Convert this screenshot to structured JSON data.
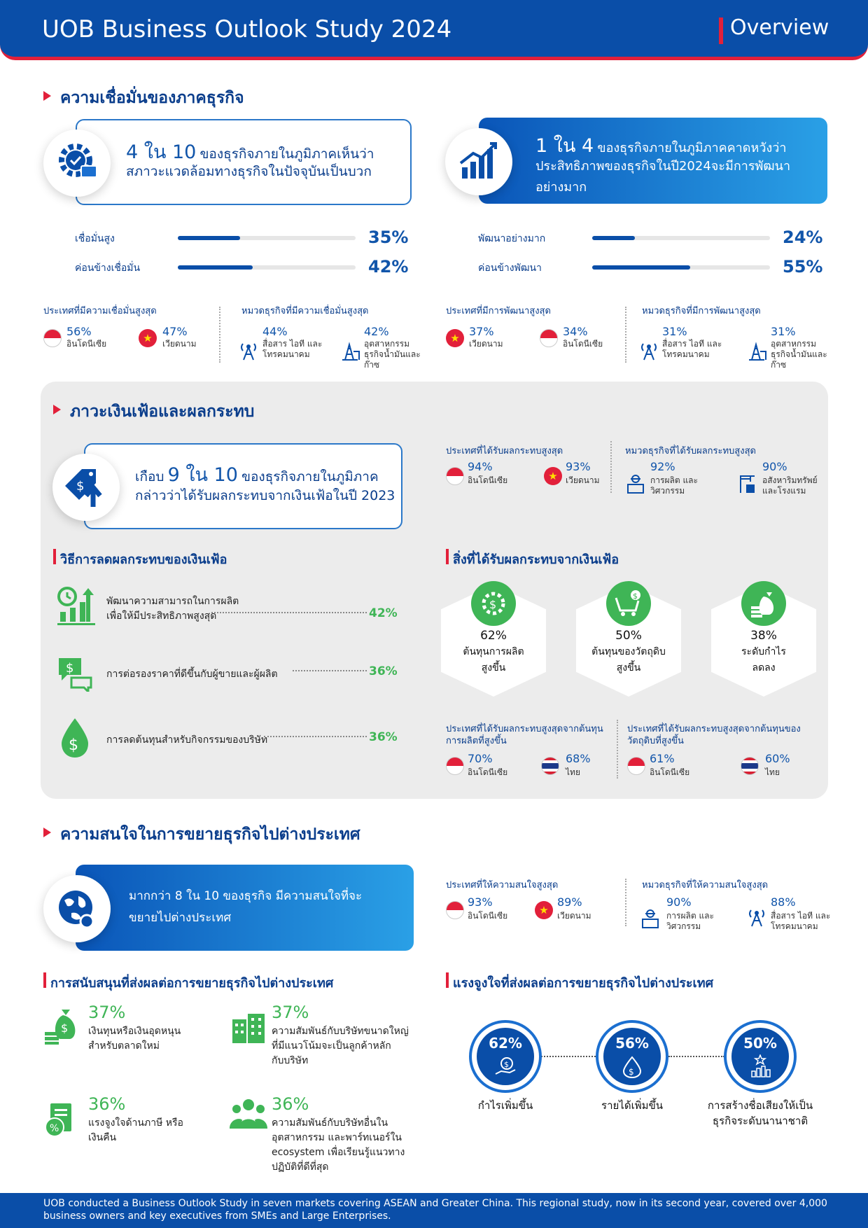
{
  "header": {
    "title": "UOB Business Outlook Study 2024",
    "section": "Overview"
  },
  "confidence": {
    "title": "ความเชื่อมั่นของภาคธุรกิจ",
    "card_left": {
      "num": "4 ใน 10",
      "line1": "ของธุรกิจภายในภูมิภาคเห็นว่า",
      "line2": "สภาวะแวดล้อมทางธุรกิจในปัจจุบันเป็นบวก"
    },
    "card_right": {
      "num": "1 ใน 4",
      "line1": "ของธุรกิจภายในภูมิภาคคาดหวังว่า",
      "line2": "ประสิทธิภาพของธุรกิจในปี2024จะมีการพัฒนา",
      "line3": "อย่างมาก"
    },
    "bars_left": [
      {
        "label": "เชื่อมั่นสูง",
        "value": 35,
        "pct": "35%"
      },
      {
        "label": "ค่อนข้างเชื่อมั่น",
        "value": 42,
        "pct": "42%"
      }
    ],
    "bars_right": [
      {
        "label": "พัฒนาอย่างมาก",
        "value": 24,
        "pct": "24%"
      },
      {
        "label": "ค่อนข้างพัฒนา",
        "value": 55,
        "pct": "55%"
      }
    ],
    "c1": {
      "title": "ประเทศที่มีความเชื่อมั่นสูงสุด",
      "a_pct": "56%",
      "a_lbl": "อินโดนีเซีย",
      "b_pct": "47%",
      "b_lbl": "เวียดนาม"
    },
    "c2": {
      "title": "หมวดธุรกิจที่มีความเชื่อมั่นสูงสุด",
      "a_pct": "44%",
      "a_lbl1": "สื่อสาร ไอที และ",
      "a_lbl2": "โทรคมนาคม",
      "b_pct": "42%",
      "b_lbl1": "อุตสาหกรรม",
      "b_lbl2": "ธุรกิจน้ำมันและ",
      "b_lbl3": "ก๊าซ"
    },
    "c3": {
      "title": "ประเทศที่มีการพัฒนาสูงสุด",
      "a_pct": "37%",
      "a_lbl": "เวียดนาม",
      "b_pct": "34%",
      "b_lbl": "อินโดนีเซีย"
    },
    "c4": {
      "title": "หมวดธุรกิจที่มีการพัฒนาสูงสุด",
      "a_pct": "31%",
      "a_lbl1": "สื่อสาร ไอที และ",
      "a_lbl2": "โทรคมนาคม",
      "b_pct": "31%",
      "b_lbl1": "อุตสาหกรรม",
      "b_lbl2": "ธุรกิจน้ำมันและ",
      "b_lbl3": "ก๊าซ"
    }
  },
  "inflation": {
    "title": "ภาวะเงินเฟ้อและผลกระทบ",
    "card": {
      "pre": "เกือบ",
      "num": "9 ใน 10",
      "line1": "ของธุรกิจภายในภูมิภาค",
      "line2": "กล่าวว่าได้รับผลกระทบจากเงินเฟ้อในปี 2023"
    },
    "c1": {
      "title": "ประเทศที่ได้รับผลกระทบสูงสุด",
      "a_pct": "94%",
      "a_lbl": "อินโดนีเซีย",
      "b_pct": "93%",
      "b_lbl": "เวียดนาม"
    },
    "c2": {
      "title": "หมวดธุรกิจที่ได้รับผลกระทบสูงสุด",
      "a_pct": "92%",
      "a_lbl1": "การผลิต และ",
      "a_lbl2": "วิศวกรรม",
      "b_pct": "90%",
      "b_lbl1": "อสังหาริมทรัพย์",
      "b_lbl2": "และโรงแรม"
    },
    "mitigation": {
      "title": "วิธีการลดผลกระทบของเงินเฟ้อ",
      "items": [
        {
          "l1": "พัฒนาความสามารถในการผลิต",
          "l2": "เพื่อให้มีประสิทธิภาพสูงสุด",
          "pct": "42%"
        },
        {
          "l1": "",
          "l2": "การต่อรองราคาที่ดีขึ้นกับผู้ขายและผู้ผลิต",
          "pct": "36%"
        },
        {
          "l1": "",
          "l2": "การลดต้นทุนสำหรับกิจกรรมของบริษัท",
          "pct": "36%"
        }
      ]
    },
    "impacts": {
      "title": "สิ่งที่ได้รับผลกระทบจากเงินเฟ้อ",
      "items": [
        {
          "pct": "62%",
          "l1": "ต้นทุนการผลิต",
          "l2": "สูงขึ้น"
        },
        {
          "pct": "50%",
          "l1": "ต้นทุนของวัตถุดิบ",
          "l2": "สูงขึ้น"
        },
        {
          "pct": "38%",
          "l1": "ระดับกำไร",
          "l2": "ลดลง"
        }
      ]
    },
    "c3": {
      "t1": "ประเทศที่ได้รับผลกระทบสูงสุดจากต้นทุน",
      "t2": "การผลิตที่สูงขึ้น",
      "a_pct": "70%",
      "a_lbl": "อินโดนีเซีย",
      "b_pct": "68%",
      "b_lbl": "ไทย"
    },
    "c4": {
      "t1": "ประเทศที่ได้รับผลกระทบสูงสุดจากต้นทุนของ",
      "t2": "วัตถุดิบที่สูงขึ้น",
      "a_pct": "61%",
      "a_lbl": "อินโดนีเซีย",
      "b_pct": "60%",
      "b_lbl": "ไทย"
    }
  },
  "expansion": {
    "title": "ความสนใจในการขยายธุรกิจไปต่างประเทศ",
    "card": {
      "line1": "มากกว่า 8 ใน 10 ของธุรกิจ มีความสนใจที่จะ",
      "line2": "ขยายไปต่างประเทศ"
    },
    "c1": {
      "title": "ประเทศที่ให้ความสนใจสูงสุด",
      "a_pct": "93%",
      "a_lbl": "อินโดนีเซีย",
      "b_pct": "89%",
      "b_lbl": "เวียดนาม"
    },
    "c2": {
      "title": "หมวดธุรกิจที่ให้ความสนใจสูงสุด",
      "a_pct": "90%",
      "a_lbl1": "การผลิต และ",
      "a_lbl2": "วิศวกรรม",
      "b_pct": "88%",
      "b_lbl1": "สื่อสาร ไอที และ",
      "b_lbl2": "โทรคมนาคม"
    },
    "support": {
      "title": "การสนับสนุนที่ส่งผลต่อการขยายธุรกิจไปต่างประเทศ",
      "items": [
        {
          "pct": "37%",
          "l1": "เงินทุนหรือเงินอุดหนุน",
          "l2": "สำหรับตลาดใหม่",
          "l3": "",
          "l4": ""
        },
        {
          "pct": "37%",
          "l1": "ความสัมพันธ์กับบริษัทขนาดใหญ่",
          "l2": "ที่มีแนวโน้มจะเป็นลูกค้าหลัก",
          "l3": "กับบริษัท",
          "l4": ""
        },
        {
          "pct": "36%",
          "l1": "แรงจูงใจด้านภาษี หรือ",
          "l2": "เงินคืน",
          "l3": "",
          "l4": ""
        },
        {
          "pct": "36%",
          "l1": "ความสัมพันธ์กับบริษัทอื่นใน",
          "l2": "อุตสาหกรรม และพาร์ทเนอร์ใน",
          "l3": "ecosystem เพื่อเรียนรู้แนวทาง",
          "l4": "ปฏิบัติที่ดีที่สุด"
        }
      ]
    },
    "motivation": {
      "title": "แรงจูงใจที่ส่งผลต่อการขยายธุรกิจไปต่างประเทศ",
      "items": [
        {
          "pct": "62%",
          "l1": "กำไรเพิ่มขึ้น",
          "l2": ""
        },
        {
          "pct": "56%",
          "l1": "รายได้เพิ่มขึ้น",
          "l2": ""
        },
        {
          "pct": "50%",
          "l1": "การสร้างชื่อเสียงให้เป็น",
          "l2": "ธุรกิจระดับนานาชาติ"
        }
      ]
    }
  },
  "footer": {
    "text": "UOB conducted a Business Outlook Study in seven markets covering ASEAN and Greater China. This regional study, now in its second year, covered over 4,000 business owners and key executives from SMEs and Large Enterprises."
  }
}
